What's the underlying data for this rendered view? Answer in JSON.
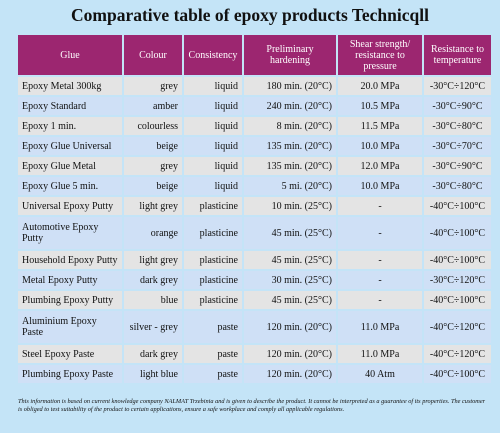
{
  "title": "Comparative table of epoxy products Technicqll",
  "headers": {
    "glue": "Glue",
    "colour": "Colour",
    "consistency": "Consistency",
    "hardening": "Preliminary hardening",
    "shear": "Shear strength/ resistance to pressure",
    "temperature": "Resistance to temperature"
  },
  "rows": [
    {
      "glue": "Epoxy Metal 300kg",
      "colour": "grey",
      "consistency": "liquid",
      "hardening": "180 min. (20°C)",
      "shear": "20.0 MPa",
      "temperature": "-30°C÷120°C"
    },
    {
      "glue": "Epoxy Standard",
      "colour": "amber",
      "consistency": "liquid",
      "hardening": "240 min. (20°C)",
      "shear": "10.5 MPa",
      "temperature": "-30°C÷90°C"
    },
    {
      "glue": "Epoxy 1 min.",
      "colour": "colourless",
      "consistency": "liquid",
      "hardening": "8 min. (20°C)",
      "shear": "11.5 MPa",
      "temperature": "-30°C÷80°C"
    },
    {
      "glue": "Epoxy Glue Universal",
      "colour": "beige",
      "consistency": "liquid",
      "hardening": "135 min. (20°C)",
      "shear": "10.0 MPa",
      "temperature": "-30°C÷70°C"
    },
    {
      "glue": "Epoxy Glue Metal",
      "colour": "grey",
      "consistency": "liquid",
      "hardening": "135 min. (20°C)",
      "shear": "12.0 MPa",
      "temperature": "-30°C÷90°C"
    },
    {
      "glue": "Epoxy Glue 5 min.",
      "colour": "beige",
      "consistency": "liquid",
      "hardening": "5 mi. (20°C)",
      "shear": "10.0 MPa",
      "temperature": "-30°C÷80°C"
    },
    {
      "glue": "Universal Epoxy Putty",
      "colour": "light grey",
      "consistency": "plasticine",
      "hardening": "10 min. (25°C)",
      "shear": "-",
      "temperature": "-40°C÷100°C"
    },
    {
      "glue": "Automotive Epoxy Putty",
      "colour": "orange",
      "consistency": "plasticine",
      "hardening": "45 min. (25°C)",
      "shear": "-",
      "temperature": "-40°C÷100°C"
    },
    {
      "glue": "Household Epoxy Putty",
      "colour": "light grey",
      "consistency": "plasticine",
      "hardening": "45 min. (25°C)",
      "shear": "-",
      "temperature": "-40°C÷100°C"
    },
    {
      "glue": "Metal Epoxy Putty",
      "colour": "dark grey",
      "consistency": "plasticine",
      "hardening": "30 min. (25°C)",
      "shear": "-",
      "temperature": "-30°C÷120°C"
    },
    {
      "glue": "Plumbing Epoxy Putty",
      "colour": "blue",
      "consistency": "plasticine",
      "hardening": "45 min. (25°C)",
      "shear": "-",
      "temperature": "-40°C÷100°C"
    },
    {
      "glue": "Aluminium Epoxy Paste",
      "colour": "silver - grey",
      "consistency": "paste",
      "hardening": "120 min. (20°C)",
      "shear": "11.0 MPa",
      "temperature": "-40°C÷120°C"
    },
    {
      "glue": "Steel Epoxy Paste",
      "colour": "dark grey",
      "consistency": "paste",
      "hardening": "120 min. (20°C)",
      "shear": "11.0 MPa",
      "temperature": "-40°C÷120°C"
    },
    {
      "glue": "Plumbing Epoxy Paste",
      "colour": "light blue",
      "consistency": "paste",
      "hardening": "120 min. (20°C)",
      "shear": "40 Atm",
      "temperature": "-40°C÷100°C"
    }
  ],
  "note": "This information is based on current knowledge company NALMAT Trzebinia and is given to describe the product. It cannot be interpreted as a guarantee of its properties. The customer is obliged to test suitability of the product to certain applications, ensure a safe workplace and comply all applicable regulations.",
  "colors": {
    "background": "#c4e4f7",
    "header": "#9c2670",
    "row_grey": "#e4e4e4",
    "row_blue": "#cfe0f6"
  }
}
